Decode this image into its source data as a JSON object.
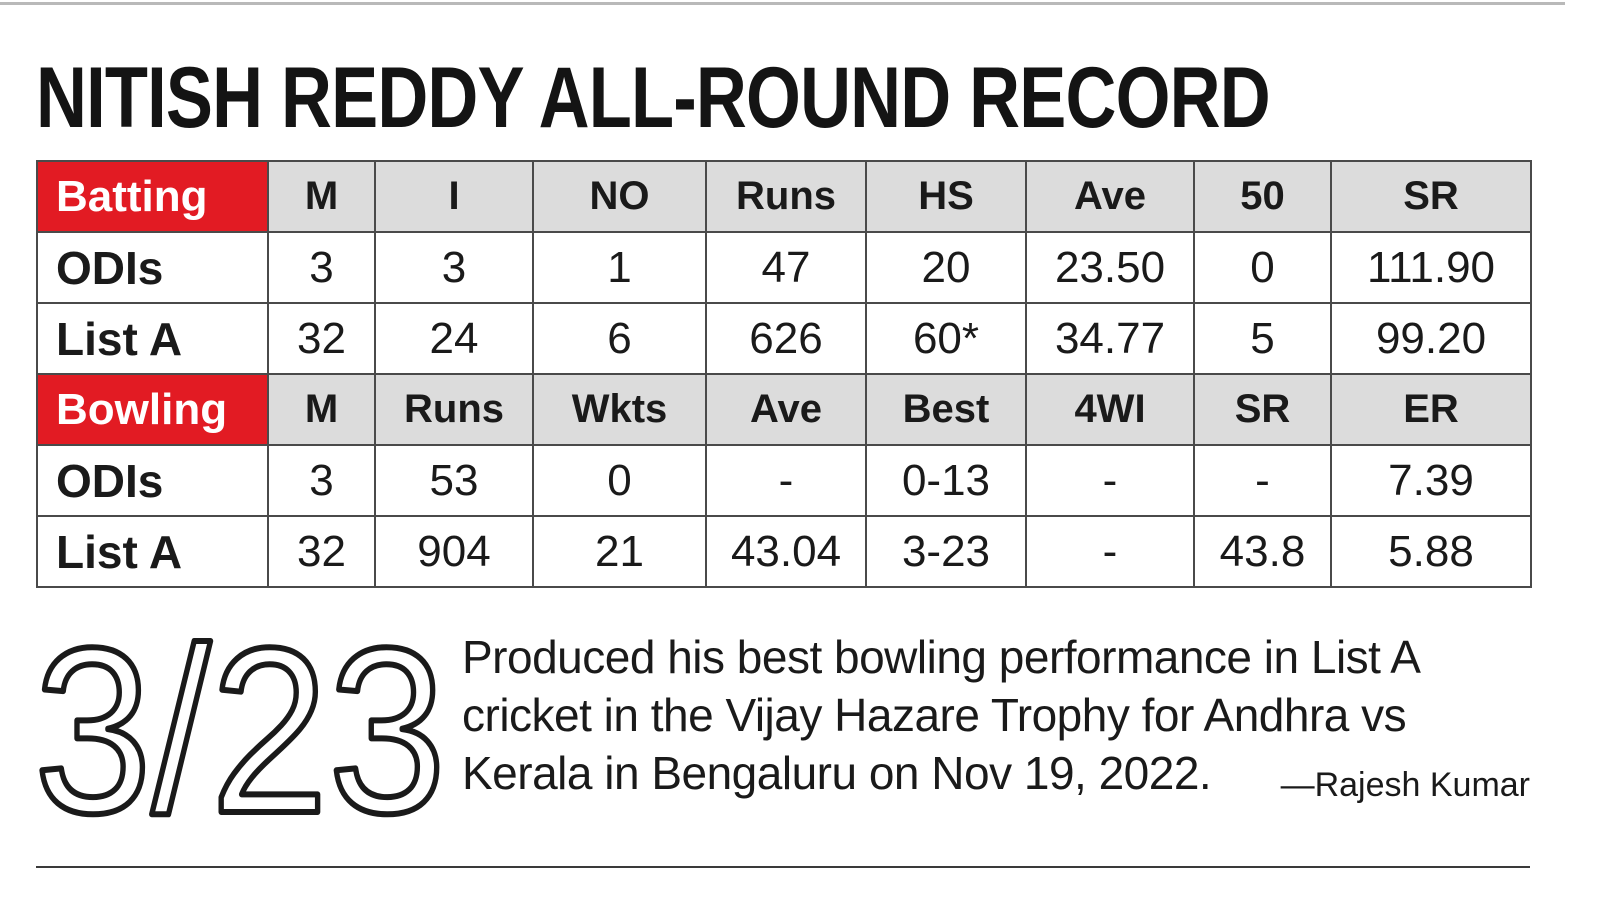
{
  "title": "NITISH REDDY ALL-ROUND RECORD",
  "batting": {
    "label": "Batting",
    "columns": [
      "M",
      "I",
      "NO",
      "Runs",
      "HS",
      "Ave",
      "50",
      "SR"
    ],
    "rows": [
      {
        "label": "ODIs",
        "values": [
          "3",
          "3",
          "1",
          "47",
          "20",
          "23.50",
          "0",
          "111.90"
        ]
      },
      {
        "label": "List A",
        "values": [
          "32",
          "24",
          "6",
          "626",
          "60*",
          "34.77",
          "5",
          "99.20"
        ]
      }
    ]
  },
  "bowling": {
    "label": "Bowling",
    "columns": [
      "M",
      "Runs",
      "Wkts",
      "Ave",
      "Best",
      "4WI",
      "SR",
      "ER"
    ],
    "rows": [
      {
        "label": "ODIs",
        "values": [
          "3",
          "53",
          "0",
          "-",
          "0-13",
          "-",
          "-",
          "7.39"
        ]
      },
      {
        "label": "List A",
        "values": [
          "32",
          "904",
          "21",
          "43.04",
          "3-23",
          "-",
          "43.8",
          "5.88"
        ]
      }
    ]
  },
  "highlight": {
    "figure": "3/23",
    "text": "Produced his best bowling performance in List A cricket in the Vijay Hazare Trophy for Andhra vs Kerala in Bengaluru on Nov 19, 2022.",
    "byline": "—Rajesh Kumar"
  },
  "colors": {
    "section_header_red": "#e21b23",
    "header_grey": "#dcdcdc",
    "border": "#4a4a4a"
  }
}
